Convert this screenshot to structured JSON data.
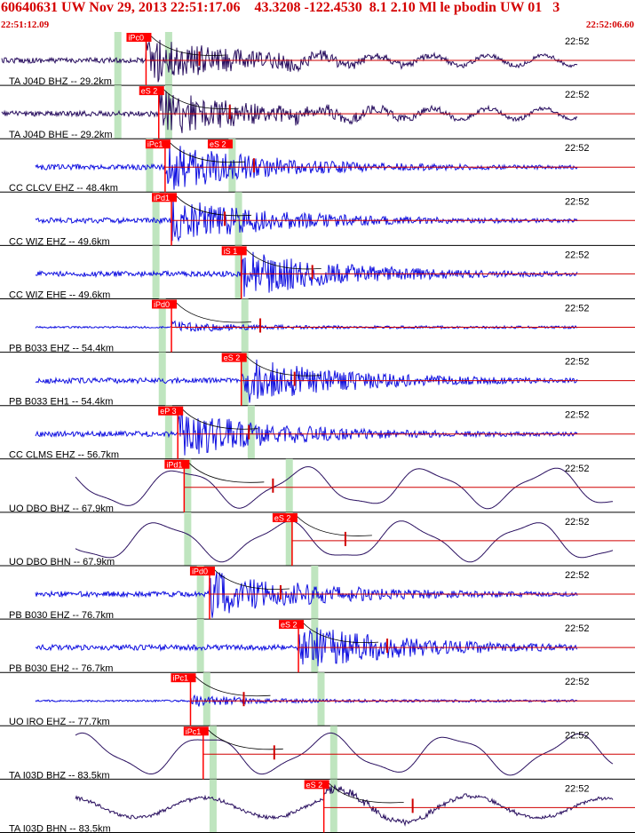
{
  "header": {
    "title": "60640631 UW Nov 29, 2013 22:51:17.06    43.3208 -122.4530  8.1 2.10 Ml le pbodin UW 01   3",
    "start_time": "22:51:12.09",
    "end_time": "22:52:06.60"
  },
  "colors": {
    "header": "#d40000",
    "pick_box": "#ff0000",
    "wave_dark": "#2a1060",
    "wave_blue": "#1010e0",
    "window_band": "#bfe5bf",
    "fit_line": "#d00000"
  },
  "traces": [
    {
      "label": "TA J04D BHZ -- 29.2km",
      "time": "22:52",
      "style": "dark",
      "kind": "noisy",
      "pick": "iPc0",
      "onset": 0.23,
      "band": 0.18,
      "band2": 0.26,
      "sband": 0.18
    },
    {
      "label": "TA J04D BHE -- 29.2km",
      "time": "22:52",
      "style": "dark",
      "kind": "noisy",
      "pick": "eS 2",
      "onset": 0.25,
      "band": 0.18,
      "band2": 0.26
    },
    {
      "label": "CC CLCV EHZ -- 48.4km",
      "time": "22:52",
      "style": "blue",
      "kind": "noisy",
      "pick": "iPc1",
      "pick2": "eS 2",
      "onset": 0.26,
      "band": 0.23,
      "band2": 0.36
    },
    {
      "label": "CC WIZ EHZ -- 49.6km",
      "time": "22:52",
      "style": "blue",
      "kind": "noisy",
      "pick": "iPd1",
      "onset": 0.27,
      "band": 0.24,
      "band2": 0.37
    },
    {
      "label": "CC WIZ EHE -- 49.6km",
      "time": "22:52",
      "style": "blue",
      "kind": "noisy",
      "pick": "iS 1",
      "onset": 0.38,
      "band": 0.24,
      "band2": 0.37
    },
    {
      "label": "PB B033 EHZ -- 54.4km",
      "time": "22:52",
      "style": "blue",
      "kind": "quiet",
      "pick": "iPd0",
      "onset": 0.27,
      "band": 0.25,
      "band2": 0.38
    },
    {
      "label": "PB B033 EH1 -- 54.4km",
      "time": "22:52",
      "style": "blue",
      "kind": "noisy",
      "pick": "eS 2",
      "onset": 0.38,
      "band": 0.25,
      "band2": 0.38
    },
    {
      "label": "CC CLMS EHZ -- 56.7km",
      "time": "22:52",
      "style": "blue",
      "kind": "noisy",
      "pick": "eP 3",
      "onset": 0.28,
      "band": 0.26,
      "band2": 0.39
    },
    {
      "label": "UO DBO BHZ -- 67.9km",
      "time": "22:52",
      "style": "dark",
      "kind": "smooth",
      "pick": "iPd1",
      "onset": 0.29,
      "band": 0.29,
      "band2": 0.45
    },
    {
      "label": "UO DBO BHN -- 67.9km",
      "time": "22:52",
      "style": "dark",
      "kind": "smooth",
      "pick": "eS 2",
      "onset": 0.46,
      "band": 0.29,
      "band2": 0.45
    },
    {
      "label": "PB B030 EHZ -- 76.7km",
      "time": "22:52",
      "style": "blue",
      "kind": "noisy",
      "pick": "iPd0",
      "onset": 0.33,
      "band": 0.31,
      "band2": 0.49
    },
    {
      "label": "PB B030 EH2 -- 76.7km",
      "time": "22:52",
      "style": "blue",
      "kind": "noisy",
      "pick": "eS 2",
      "onset": 0.47,
      "band": 0.31,
      "band2": 0.49
    },
    {
      "label": "UO IRO EHZ -- 77.7km",
      "time": "22:52",
      "style": "blue",
      "kind": "quiet",
      "pick": "iPc1",
      "onset": 0.3,
      "band": 0.32,
      "band2": 0.5
    },
    {
      "label": "TA I03D BHZ -- 83.5km",
      "time": "22:52",
      "style": "dark",
      "kind": "smooth",
      "pick": "iPc1",
      "onset": 0.32,
      "band": 0.33,
      "band2": 0.52
    },
    {
      "label": "TA I03D BHN -- 83.5km",
      "time": "22:52",
      "style": "dark",
      "kind": "smoothnoisy",
      "pick": "eS 2",
      "onset": 0.51,
      "band": 0.33,
      "band2": 0.52
    }
  ]
}
